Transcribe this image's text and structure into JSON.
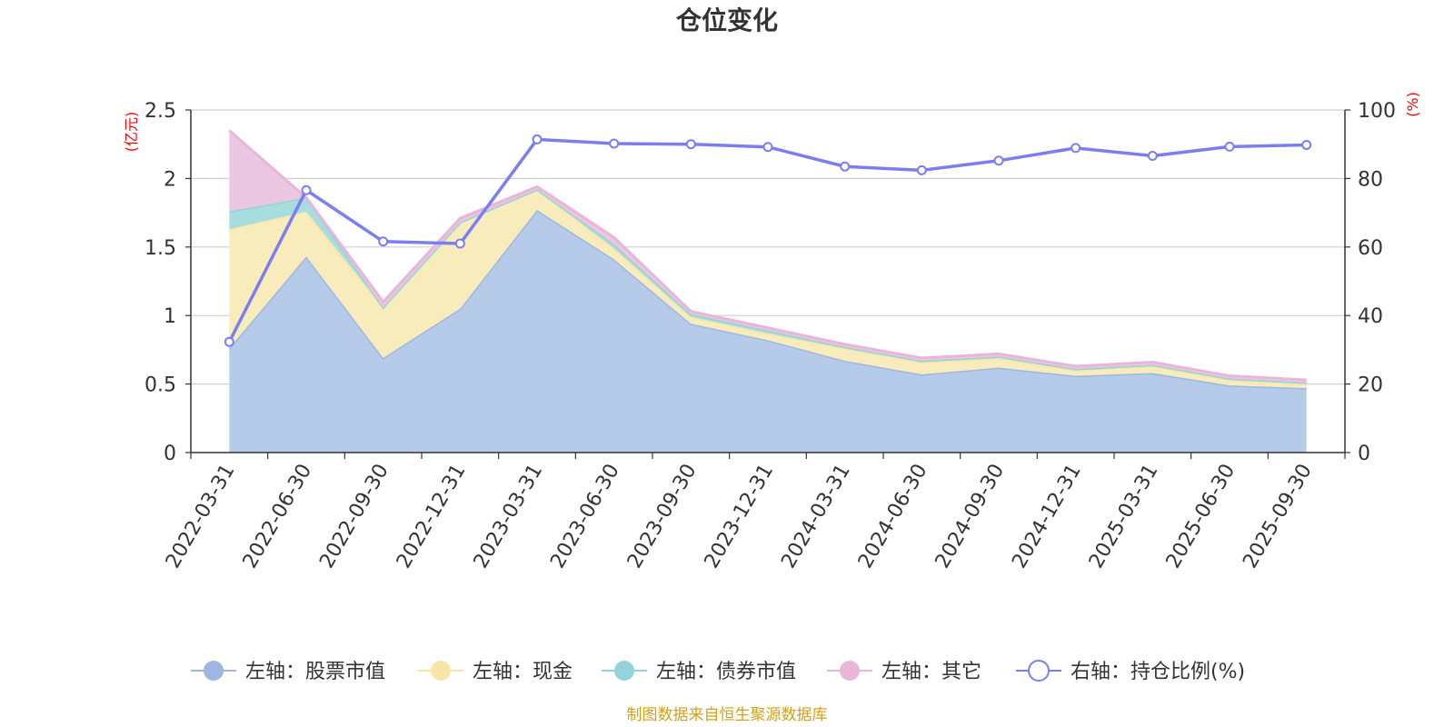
{
  "chart_data": {
    "type": "area",
    "title": "仓位变化",
    "categories": [
      "2022-03-31",
      "2022-06-30",
      "2022-09-30",
      "2022-12-31",
      "2023-03-31",
      "2023-06-30",
      "2023-09-30",
      "2023-12-31",
      "2024-03-31",
      "2024-06-30",
      "2024-09-30",
      "2024-12-31",
      "2025-03-31",
      "2025-06-30",
      "2025-09-30"
    ],
    "left_axis": {
      "name": "(亿元)",
      "min": 0,
      "max": 2.5,
      "ticks": [
        "0",
        "0.5",
        "1",
        "1.5",
        "2",
        "2.5"
      ]
    },
    "right_axis": {
      "name": "(%)",
      "min": 0,
      "max": 100,
      "ticks": [
        "0",
        "20",
        "40",
        "60",
        "80",
        "100"
      ]
    },
    "stacked_series": [
      {
        "name": "左轴：股票市值",
        "color": "#9db7e0",
        "fill": "#b6cbea",
        "values": [
          0.76,
          1.43,
          0.69,
          1.05,
          1.77,
          1.41,
          0.94,
          0.82,
          0.67,
          0.57,
          0.62,
          0.56,
          0.58,
          0.49,
          0.47
        ]
      },
      {
        "name": "左轴：现金",
        "color": "#f7e7a6",
        "fill": "#f8ecbd",
        "values": [
          0.87,
          0.33,
          0.37,
          0.63,
          0.15,
          0.08,
          0.05,
          0.05,
          0.09,
          0.09,
          0.07,
          0.04,
          0.05,
          0.04,
          0.03
        ]
      },
      {
        "name": "左轴：债券市值",
        "color": "#92d4d9",
        "fill": "#a8dde0",
        "values": [
          0.13,
          0.1,
          0.0,
          0.0,
          0.0,
          0.03,
          0.02,
          0.02,
          0.01,
          0.01,
          0.01,
          0.01,
          0.01,
          0.01,
          0.01
        ]
      },
      {
        "name": "左轴：其它",
        "color": "#e9b5d8",
        "fill": "#ebc7e1",
        "values": [
          0.59,
          0.0,
          0.04,
          0.03,
          0.02,
          0.05,
          0.02,
          0.02,
          0.02,
          0.02,
          0.02,
          0.02,
          0.02,
          0.02,
          0.02
        ]
      }
    ],
    "line_series": {
      "name": "右轴：持仓比例(%)",
      "color": "#7b7ef0",
      "values": [
        32.3,
        76.6,
        61.6,
        61.0,
        91.4,
        90.2,
        90.0,
        89.2,
        83.5,
        82.4,
        85.2,
        88.9,
        86.6,
        89.3,
        89.8
      ]
    },
    "source": "制图数据来自恒生聚源数据库"
  }
}
